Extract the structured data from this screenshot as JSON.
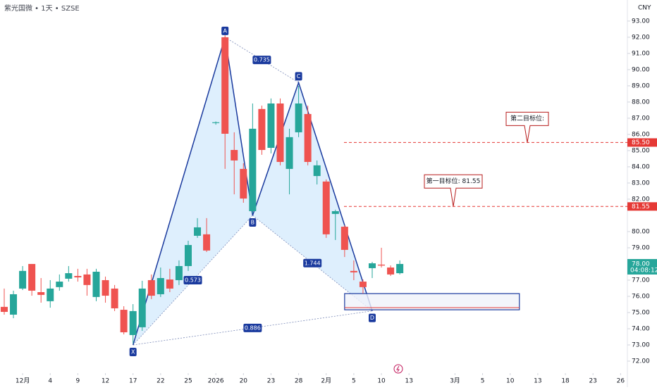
{
  "chart_data": {
    "type": "candlestick",
    "title": "紫光国微 • 1天 • SZSE",
    "currency": "CNY",
    "up_color": "#26a69a",
    "down_color": "#ef5350",
    "open": [
      75.35,
      74.87,
      76.48,
      78.0,
      76.26,
      75.7,
      76.57,
      77.09,
      77.26,
      77.35,
      75.96,
      77.0,
      76.48,
      75.17,
      73.61,
      74.09,
      77.0,
      76.13,
      77.04,
      77.0,
      77.87,
      79.74,
      79.83,
      86.7,
      92.0,
      85.04,
      83.87,
      81.26,
      87.57,
      85.17,
      87.91,
      83.87,
      86.13,
      87.26,
      83.43,
      83.09,
      81.09,
      80.3,
      77.57,
      76.91,
      77.74,
      77.96,
      77.78,
      77.43
    ],
    "high": [
      76.48,
      76.35,
      77.87,
      78.0,
      77.13,
      77.0,
      77.35,
      77.87,
      77.7,
      77.7,
      77.7,
      77.22,
      76.7,
      75.39,
      75.52,
      76.96,
      77.35,
      77.78,
      77.7,
      78.22,
      79.43,
      80.83,
      80.83,
      86.8,
      92.13,
      86.13,
      84.22,
      87.91,
      87.78,
      88.22,
      88.22,
      86.35,
      89.0,
      87.78,
      84.39,
      83.22,
      81.35,
      80.39,
      78.22,
      77.04,
      78.13,
      79.0,
      77.91,
      78.22
    ],
    "low": [
      74.87,
      74.65,
      76.39,
      76.04,
      75.61,
      75.3,
      76.35,
      76.91,
      76.91,
      76.04,
      75.7,
      75.61,
      75.09,
      73.65,
      73.09,
      73.87,
      75.83,
      75.96,
      76.26,
      76.7,
      77.57,
      79.61,
      78.74,
      86.6,
      83.87,
      82.3,
      81.78,
      81.13,
      84.74,
      84.83,
      84.09,
      82.3,
      85.83,
      84.09,
      82.91,
      79.61,
      79.48,
      78.43,
      77.0,
      76.17,
      77.13,
      77.78,
      77.26,
      77.35
    ],
    "close": [
      75.04,
      76.13,
      77.57,
      76.35,
      76.09,
      76.48,
      76.91,
      77.43,
      77.17,
      76.7,
      77.52,
      76.04,
      75.26,
      73.78,
      75.09,
      76.48,
      76.04,
      77.13,
      76.48,
      77.87,
      79.17,
      80.26,
      78.83,
      86.75,
      86.04,
      84.39,
      82.04,
      86.35,
      85.04,
      87.91,
      84.3,
      85.83,
      87.91,
      84.3,
      84.09,
      79.83,
      81.26,
      78.87,
      77.48,
      76.57,
      78.04,
      77.9,
      77.35,
      78.0
    ],
    "xlim": [
      -0.46,
      67.74
    ],
    "xticks": [
      {
        "value": 2,
        "label": "12月"
      },
      {
        "value": 5,
        "label": "4"
      },
      {
        "value": 8,
        "label": "9"
      },
      {
        "value": 11,
        "label": "12"
      },
      {
        "value": 14,
        "label": "17"
      },
      {
        "value": 17,
        "label": "22"
      },
      {
        "value": 20,
        "label": "25"
      },
      {
        "value": 23,
        "label": "2026"
      },
      {
        "value": 26,
        "label": "20"
      },
      {
        "value": 29,
        "label": "23"
      },
      {
        "value": 32,
        "label": "28"
      },
      {
        "value": 35,
        "label": "2月"
      },
      {
        "value": 38,
        "label": "5"
      },
      {
        "value": 41,
        "label": "10"
      },
      {
        "value": 44,
        "label": "13"
      },
      {
        "value": 49,
        "label": "3月"
      },
      {
        "value": 52,
        "label": "5"
      },
      {
        "value": 55,
        "label": "10"
      },
      {
        "value": 58,
        "label": "13"
      },
      {
        "value": 61,
        "label": "18"
      },
      {
        "value": 64,
        "label": "23"
      },
      {
        "value": 67,
        "label": "26"
      }
    ],
    "ylim": [
      71.26,
      94.3
    ],
    "yticks": [
      {
        "value": 93,
        "label": "93.00"
      },
      {
        "value": 92,
        "label": "92.00"
      },
      {
        "value": 91,
        "label": "91.00"
      },
      {
        "value": 90,
        "label": "90.00"
      },
      {
        "value": 89,
        "label": "89.00"
      },
      {
        "value": 88,
        "label": "88.00"
      },
      {
        "value": 87,
        "label": "87.00"
      },
      {
        "value": 86,
        "label": "86.00"
      },
      {
        "value": 85,
        "label": "85.00"
      },
      {
        "value": 84,
        "label": "84.00"
      },
      {
        "value": 83,
        "label": "83.00"
      },
      {
        "value": 82,
        "label": "82.00"
      },
      {
        "value": 80,
        "label": "80.00"
      },
      {
        "value": 79,
        "label": "79.00"
      },
      {
        "value": 77,
        "label": "77.00"
      },
      {
        "value": 76,
        "label": "76.00"
      },
      {
        "value": 75,
        "label": "75.00"
      },
      {
        "value": 74,
        "label": "74.00"
      },
      {
        "value": 73,
        "label": "73.00"
      },
      {
        "value": 72,
        "label": "72.00"
      }
    ],
    "last": {
      "value": 78.0,
      "label": "78.00",
      "countdown": "04:08:12"
    },
    "levels": [
      {
        "value": 85.5,
        "label": "85.50",
        "note": "第二目标位:"
      },
      {
        "value": 81.55,
        "label": "81.55",
        "note": "第一目标位: 81.55"
      }
    ],
    "pattern": {
      "points": [
        {
          "label": "X",
          "x": 14,
          "y": 73.0
        },
        {
          "label": "A",
          "x": 24,
          "y": 92.0
        },
        {
          "label": "B",
          "x": 27,
          "y": 81.0
        },
        {
          "label": "C",
          "x": 32,
          "y": 89.2
        },
        {
          "label": "D",
          "x": 40,
          "y": 75.1
        }
      ],
      "ratios": [
        {
          "label": "0.735",
          "from": 1,
          "to": 3
        },
        {
          "label": "0.573",
          "from": 0,
          "to": 2
        },
        {
          "label": "1.744",
          "from": 2,
          "to": 4
        },
        {
          "label": "0.886",
          "from": 0,
          "to": 4
        }
      ]
    },
    "zone": {
      "x": [
        37,
        56
      ],
      "y": [
        75.17,
        76.17
      ]
    }
  }
}
